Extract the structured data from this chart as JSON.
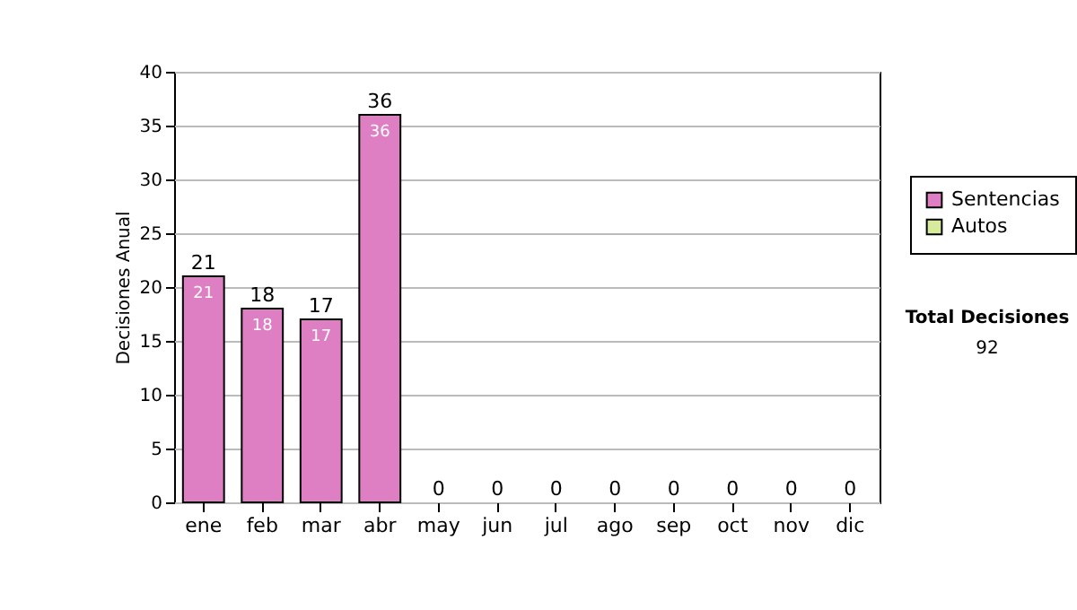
{
  "chart_data": {
    "type": "bar",
    "stacked": true,
    "ylabel": "Decisiones Anual",
    "categories": [
      "ene",
      "feb",
      "mar",
      "abr",
      "may",
      "jun",
      "jul",
      "ago",
      "sep",
      "oct",
      "nov",
      "dic"
    ],
    "series": [
      {
        "name": "Sentencias",
        "color": "#de7fc4",
        "values": [
          21,
          18,
          17,
          36,
          0,
          0,
          0,
          0,
          0,
          0,
          0,
          0
        ],
        "value_labels": [
          "21",
          "18",
          "17",
          "36",
          null,
          null,
          null,
          null,
          null,
          null,
          null,
          null
        ]
      },
      {
        "name": "Autos",
        "color": "#d8eb9c",
        "values": [
          0,
          0,
          0,
          0,
          0,
          0,
          0,
          0,
          0,
          0,
          0,
          0
        ]
      }
    ],
    "ylim": [
      0,
      40
    ],
    "yticks": [
      0,
      5,
      10,
      15,
      20,
      25,
      30,
      35,
      40
    ],
    "grid": "y",
    "legend": "right",
    "totals": [
      "21",
      "18",
      "17",
      "36",
      "0",
      "0",
      "0",
      "0",
      "0",
      "0",
      "0",
      "0"
    ],
    "annotations": [
      "Total Decisiones",
      "92"
    ]
  }
}
